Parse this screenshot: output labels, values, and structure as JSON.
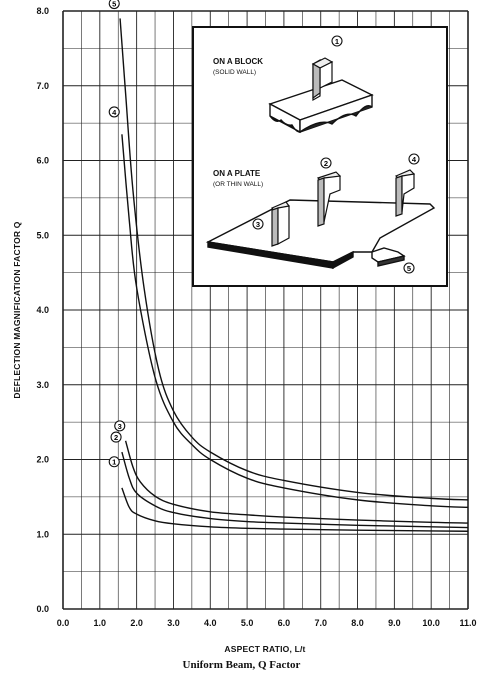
{
  "chart_data": {
    "type": "line",
    "title": "Uniform Beam, Q Factor",
    "xlabel": "ASPECT RATIO, L/t",
    "ylabel": "DEFLECTION MAGNIFICATION FACTOR Q",
    "xlim": [
      0,
      11
    ],
    "ylim": [
      0,
      8
    ],
    "grid": true,
    "x_ticks": [
      "0.0",
      "1.0",
      "2.0",
      "3.0",
      "4.0",
      "5.0",
      "6.0",
      "7.0",
      "8.0",
      "9.0",
      "10.0",
      "11.0"
    ],
    "y_ticks": [
      "0.0",
      "1.0",
      "2.0",
      "3.0",
      "4.0",
      "5.0",
      "6.0",
      "7.0",
      "8.0"
    ],
    "series": [
      {
        "name": "1",
        "x": [
          1.6,
          1.8,
          2.0,
          2.5,
          3.0,
          4.0,
          5.0,
          6.0,
          8.0,
          10.0,
          11.0
        ],
        "y": [
          1.62,
          1.36,
          1.27,
          1.18,
          1.14,
          1.1,
          1.08,
          1.07,
          1.055,
          1.045,
          1.04
        ]
      },
      {
        "name": "2",
        "x": [
          1.6,
          1.8,
          2.0,
          2.5,
          3.0,
          4.0,
          5.0,
          6.0,
          8.0,
          10.0,
          11.0
        ],
        "y": [
          2.1,
          1.75,
          1.55,
          1.38,
          1.29,
          1.21,
          1.17,
          1.15,
          1.12,
          1.1,
          1.09
        ]
      },
      {
        "name": "3",
        "x": [
          1.7,
          1.9,
          2.1,
          2.5,
          3.0,
          4.0,
          5.0,
          6.0,
          8.0,
          10.0,
          11.0
        ],
        "y": [
          2.25,
          1.9,
          1.7,
          1.51,
          1.4,
          1.3,
          1.26,
          1.23,
          1.19,
          1.16,
          1.15
        ]
      },
      {
        "name": "4",
        "x": [
          1.6,
          1.8,
          2.0,
          2.5,
          3.0,
          3.5,
          4.0,
          5.0,
          6.0,
          8.0,
          10.0,
          11.0
        ],
        "y": [
          6.35,
          5.2,
          4.3,
          3.1,
          2.5,
          2.2,
          2.0,
          1.75,
          1.62,
          1.46,
          1.38,
          1.36
        ]
      },
      {
        "name": "5",
        "x": [
          1.55,
          1.7,
          1.9,
          2.2,
          2.6,
          3.0,
          3.5,
          4.0,
          5.0,
          6.0,
          8.0,
          10.0,
          11.0
        ],
        "y": [
          7.9,
          6.9,
          5.6,
          4.3,
          3.2,
          2.65,
          2.3,
          2.1,
          1.85,
          1.72,
          1.56,
          1.48,
          1.46
        ]
      }
    ],
    "curve_labels": [
      "1",
      "2",
      "3",
      "4",
      "5"
    ]
  },
  "inset": {
    "block_title": "ON A BLOCK",
    "block_subtitle": "(SOLID WALL)",
    "plate_title": "ON A PLATE",
    "plate_subtitle": "(OR THIN WALL)",
    "markers": [
      "1",
      "2",
      "3",
      "4",
      "5"
    ]
  }
}
